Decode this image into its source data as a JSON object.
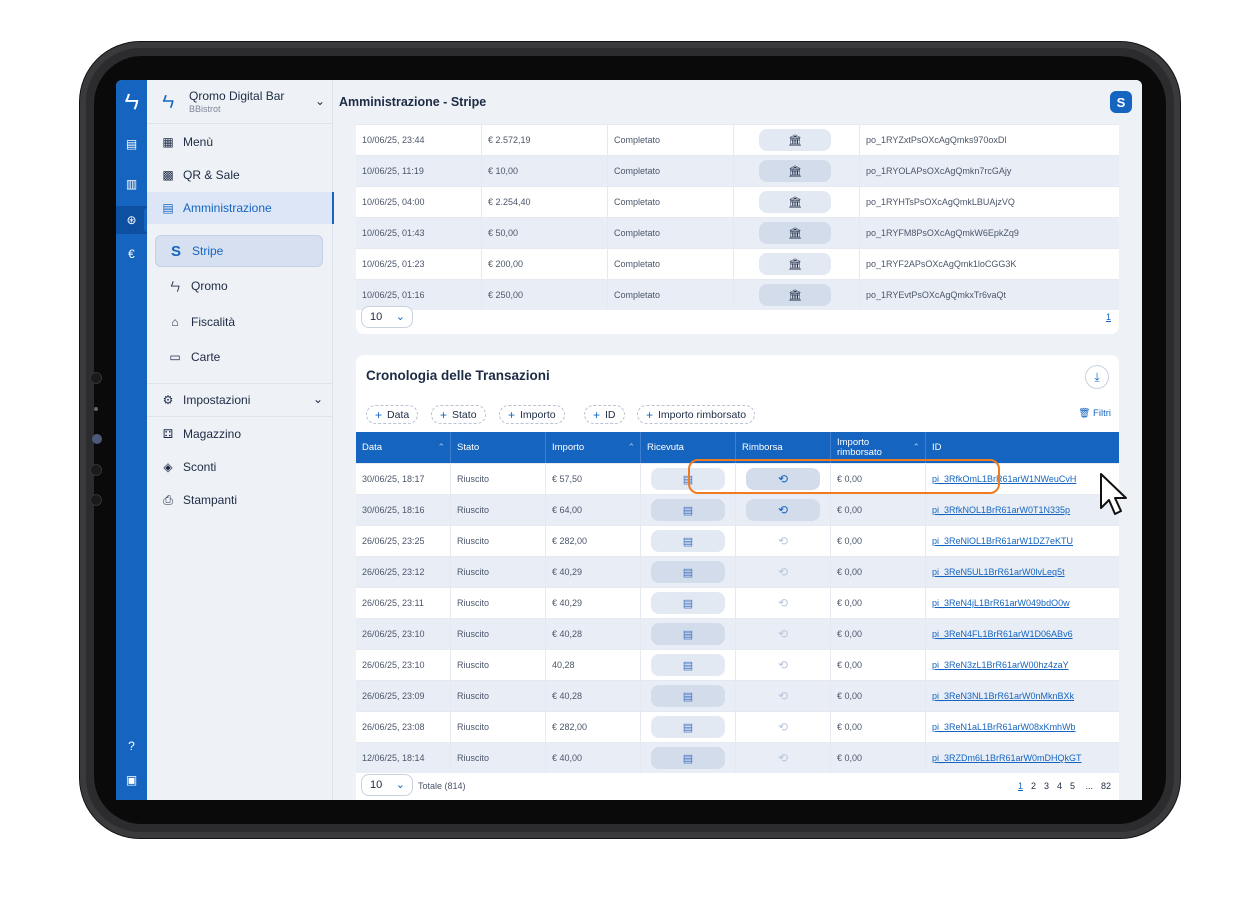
{
  "sidebar": {
    "brand_name": "Qromo Digital Bar",
    "brand_sub": "BBistrot",
    "items": [
      {
        "label": "Menù",
        "icon": "menu-book-icon"
      },
      {
        "label": "QR & Sale",
        "icon": "qr-code-icon"
      },
      {
        "label": "Amministrazione",
        "icon": "admin-grid-icon"
      }
    ],
    "sub_items": [
      {
        "label": "Stripe",
        "icon": "stripe-icon"
      },
      {
        "label": "Qromo",
        "icon": "qromo-icon"
      },
      {
        "label": "Fiscalità",
        "icon": "bank-icon"
      },
      {
        "label": "Carte",
        "icon": "card-icon"
      }
    ],
    "bottom_items": [
      {
        "label": "Impostazioni",
        "icon": "settings-icon"
      },
      {
        "label": "Magazzino",
        "icon": "warehouse-icon"
      },
      {
        "label": "Sconti",
        "icon": "discount-tag-icon"
      },
      {
        "label": "Stampanti",
        "icon": "printer-icon"
      }
    ]
  },
  "header": {
    "title": "Amministrazione - Stripe",
    "badge": "S"
  },
  "payouts": {
    "rows": [
      {
        "date": "10/06/25, 23:44",
        "amount": "€ 2.572,19",
        "status": "Completato",
        "id": "po_1RYZxtPsOXcAgQmks970oxDl"
      },
      {
        "date": "10/06/25, 11:19",
        "amount": "€ 10,00",
        "status": "Completato",
        "id": "po_1RYOLAPsOXcAgQmkn7rcGAjy"
      },
      {
        "date": "10/06/25, 04:00",
        "amount": "€ 2.254,40",
        "status": "Completato",
        "id": "po_1RYHTsPsOXcAgQmkLBUAjzVQ"
      },
      {
        "date": "10/06/25, 01:43",
        "amount": "€ 50,00",
        "status": "Completato",
        "id": "po_1RYFM8PsOXcAgQmkW6EpkZq9"
      },
      {
        "date": "10/06/25, 01:23",
        "amount": "€ 200,00",
        "status": "Completato",
        "id": "po_1RYF2APsOXcAgQmk1loCGG3K"
      },
      {
        "date": "10/06/25, 01:16",
        "amount": "€ 250,00",
        "status": "Completato",
        "id": "po_1RYEvtPsOXcAgQmkxTr6vaQt"
      }
    ],
    "page_size": "10",
    "current_page": "1"
  },
  "transactions": {
    "title": "Cronologia delle Transazioni",
    "filters": [
      "Data",
      "Stato",
      "Importo",
      "ID",
      "Importo rimborsato"
    ],
    "filtri_label": "Filtri",
    "columns": [
      "Data",
      "Stato",
      "Importo",
      "Ricevuta",
      "Rimborsa",
      "Importo rimborsato",
      "ID"
    ],
    "rows": [
      {
        "date": "30/06/25, 18:17",
        "status": "Riuscito",
        "amount": "€ 57,50",
        "refundable": true,
        "refunded": "€ 0,00",
        "id": "pi_3RfkOmL1BrR61arW1NWeuCvH"
      },
      {
        "date": "30/06/25, 18:16",
        "status": "Riuscito",
        "amount": "€ 64,00",
        "refundable": true,
        "refunded": "€ 0,00",
        "id": "pi_3RfkNOL1BrR61arW0T1N335p"
      },
      {
        "date": "26/06/25, 23:25",
        "status": "Riuscito",
        "amount": "€ 282,00",
        "refundable": false,
        "refunded": "€ 0,00",
        "id": "pi_3ReNlOL1BrR61arW1DZ7eKTU"
      },
      {
        "date": "26/06/25, 23:12",
        "status": "Riuscito",
        "amount": "€ 40,29",
        "refundable": false,
        "refunded": "€ 0,00",
        "id": "pi_3ReN5UL1BrR61arW0lvLeq5t"
      },
      {
        "date": "26/06/25, 23:11",
        "status": "Riuscito",
        "amount": "€ 40,29",
        "refundable": false,
        "refunded": "€ 0,00",
        "id": "pi_3ReN4jL1BrR61arW049bdO0w"
      },
      {
        "date": "26/06/25, 23:10",
        "status": "Riuscito",
        "amount": "€ 40,28",
        "refundable": false,
        "refunded": "€ 0,00",
        "id": "pi_3ReN4FL1BrR61arW1D06ABv6"
      },
      {
        "date": "26/06/25, 23:10",
        "status": "Riuscito",
        "amount": "40,28",
        "refundable": false,
        "refunded": "€ 0,00",
        "id": "pi_3ReN3zL1BrR61arW00hz4zaY"
      },
      {
        "date": "26/06/25, 23:09",
        "status": "Riuscito",
        "amount": "€ 40,28",
        "refundable": false,
        "refunded": "€ 0,00",
        "id": "pi_3ReN3NL1BrR61arW0nMknBXk"
      },
      {
        "date": "26/06/25, 23:08",
        "status": "Riuscito",
        "amount": "€ 282,00",
        "refundable": false,
        "refunded": "€ 0,00",
        "id": "pi_3ReN1aL1BrR61arW08xKmhWb"
      },
      {
        "date": "12/06/25, 18:14",
        "status": "Riuscito",
        "amount": "€ 40,00",
        "refundable": false,
        "refunded": "€ 0,00",
        "id": "pi_3RZDm6L1BrR61arW0mDHQkGT"
      }
    ],
    "page_size": "10",
    "total": "Totale (814)",
    "pages": [
      "1",
      "2",
      "3",
      "4",
      "5",
      "...",
      "82"
    ]
  },
  "colors": {
    "accent": "#1565c0",
    "highlight": "#f07c21"
  }
}
